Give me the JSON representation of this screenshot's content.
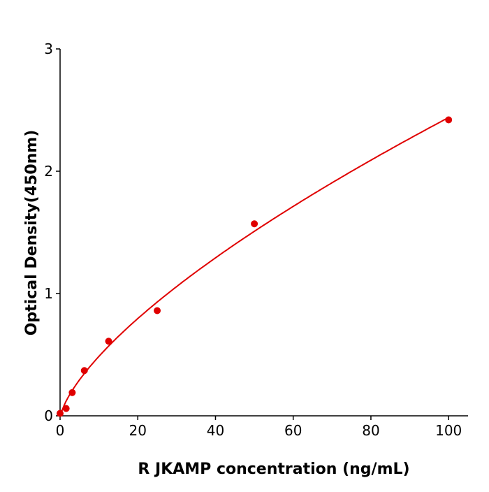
{
  "chart_data": {
    "type": "scatter",
    "title": "",
    "xlabel": "R  JKAMP concentration (ng/mL)",
    "ylabel": "Optical Density(450nm)",
    "xlim": [
      0,
      105
    ],
    "ylim": [
      0,
      3
    ],
    "xticks": [
      "0",
      "20",
      "40",
      "60",
      "80",
      "100"
    ],
    "yticks": [
      "0",
      "1",
      "2",
      "3"
    ],
    "grid": false,
    "color": "#e00000",
    "points": {
      "x": [
        0,
        1.56,
        3.125,
        6.25,
        12.5,
        25,
        50,
        100
      ],
      "y": [
        0.02,
        0.06,
        0.19,
        0.37,
        0.61,
        0.86,
        1.57,
        2.42
      ]
    },
    "fit_curve": true
  }
}
